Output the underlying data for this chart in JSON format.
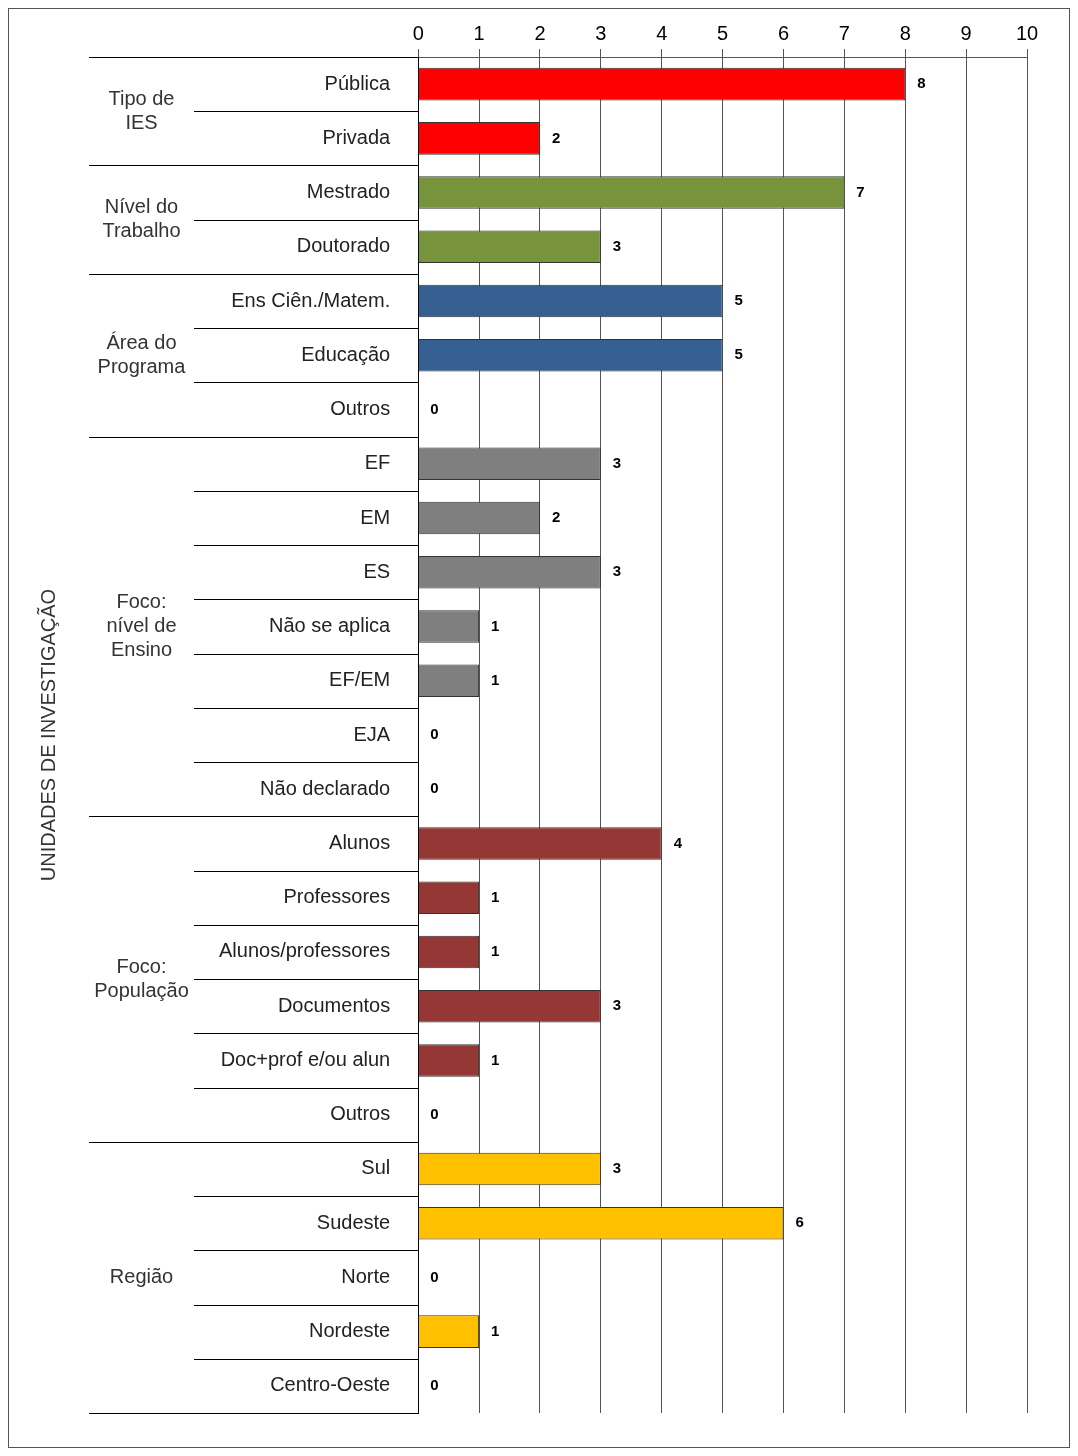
{
  "chart_data": {
    "type": "bar",
    "orientation": "horizontal",
    "categories": [
      "Pública",
      "Privada",
      "Mestrado",
      "Doutorado",
      "Ens Ciên./Matem.",
      "Educação",
      "Outros",
      "EF",
      "EM",
      "ES",
      "Não se aplica",
      "EF/EM",
      "EJA",
      "Não declarado",
      "Alunos",
      "Professores",
      "Alunos/professores",
      "Documentos",
      "Doc+prof e/ou alun",
      "Outros",
      "Sul",
      "Sudeste",
      "Norte",
      "Nordeste",
      "Centro-Oeste"
    ],
    "values": [
      8,
      2,
      7,
      3,
      5,
      5,
      0,
      3,
      2,
      3,
      1,
      1,
      0,
      0,
      4,
      1,
      1,
      3,
      1,
      0,
      3,
      6,
      0,
      1,
      0
    ],
    "colors": [
      "#ff0000",
      "#ff0000",
      "#77933c",
      "#77933c",
      "#376092",
      "#376092",
      "#376092",
      "#7f7f7f",
      "#7f7f7f",
      "#7f7f7f",
      "#7f7f7f",
      "#7f7f7f",
      "#7f7f7f",
      "#7f7f7f",
      "#953735",
      "#953735",
      "#953735",
      "#953735",
      "#953735",
      "#953735",
      "#ffc000",
      "#ffc000",
      "#ffc000",
      "#ffc000",
      "#ffc000"
    ],
    "xlim": [
      0,
      10
    ],
    "xticks": [
      0,
      1,
      2,
      3,
      4,
      5,
      6,
      7,
      8,
      9,
      10
    ],
    "grid": "x",
    "data_labels": true,
    "annotations": [
      "Tipo de IES",
      "Nível do Trabalho",
      "Área do Programa",
      "Foco: nível de Ensino",
      "Foco: População",
      "Região",
      "UNIDADES DE INVESTIGAÇÃO"
    ]
  }
}
